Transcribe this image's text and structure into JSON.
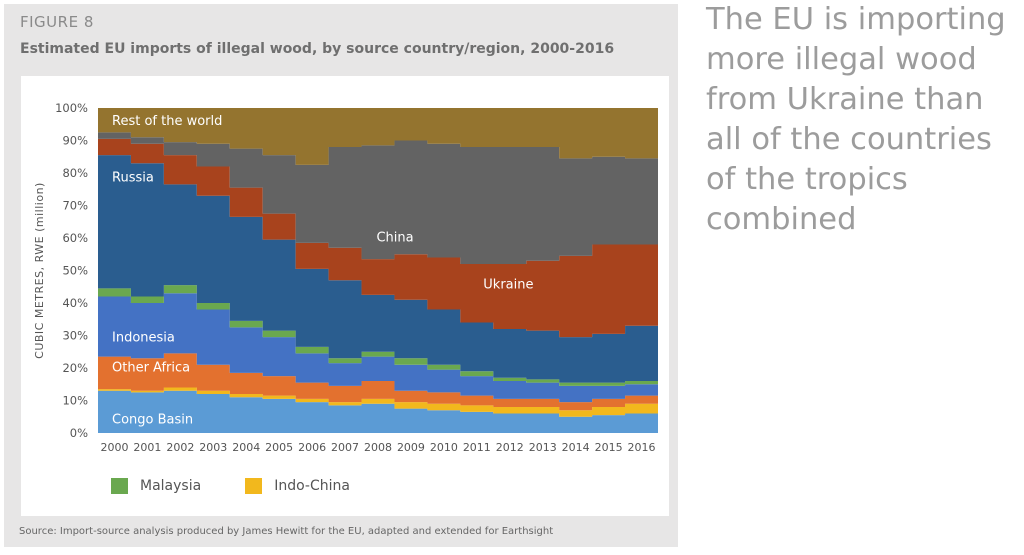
{
  "figure": {
    "label": "FIGURE 8",
    "title": "Estimated EU imports of illegal wood, by source country/region, 2000-2016",
    "source": "Source: Import-source analysis produced by James Hewitt for the EU, adapted and extended for Earthsight"
  },
  "headline": "The EU is importing\nmore illegal wood\nfrom Ukraine than\nall of the countries\nof the tropics\ncombined",
  "legend": [
    {
      "label": "Malaysia",
      "color": "#6aa84f"
    },
    {
      "label": "Indo-China",
      "color": "#f2b81d"
    }
  ],
  "chart_data": {
    "type": "area",
    "stacked": true,
    "xlabel": "",
    "ylabel": "CUBIC METRES, RWE (million)",
    "ylim": [
      0,
      100
    ],
    "y_ticks": [
      "0%",
      "10%",
      "20%",
      "30%",
      "40%",
      "50%",
      "60%",
      "70%",
      "80%",
      "90%",
      "100%"
    ],
    "categories": [
      "2000",
      "2001",
      "2002",
      "2003",
      "2004",
      "2005",
      "2006",
      "2007",
      "2008",
      "2009",
      "2010",
      "2011",
      "2012",
      "2013",
      "2014",
      "2015",
      "2016"
    ],
    "series": [
      {
        "name": "Congo Basin",
        "color": "#5b9bd5",
        "label": "Congo Basin",
        "values": [
          13,
          12.5,
          13,
          12,
          11,
          10.5,
          9.5,
          8.5,
          9,
          7.5,
          7,
          6.5,
          6,
          6,
          5,
          5.5,
          6
        ]
      },
      {
        "name": "Indo-China",
        "color": "#f2b81d",
        "label": "",
        "values": [
          0.5,
          0.5,
          1,
          1,
          1,
          1,
          1,
          1,
          1.5,
          2,
          2,
          2,
          2,
          2,
          2,
          2.5,
          3
        ]
      },
      {
        "name": "Other Africa",
        "color": "#e3712f",
        "label": "Other Africa",
        "values": [
          10,
          10,
          10.5,
          8,
          6.5,
          6,
          5,
          5,
          5.5,
          3.5,
          3.5,
          3,
          2.5,
          2.5,
          2.5,
          2.5,
          2.5
        ]
      },
      {
        "name": "Indonesia",
        "color": "#4472c4",
        "label": "Indonesia",
        "values": [
          18.5,
          17,
          18.5,
          17,
          14,
          12,
          9,
          7,
          7.5,
          8,
          7,
          6,
          5.5,
          5,
          5,
          4,
          3.5
        ]
      },
      {
        "name": "Malaysia",
        "color": "#6aa84f",
        "label": "",
        "values": [
          2.5,
          2,
          2.5,
          2,
          2,
          2,
          2,
          1.5,
          1.5,
          2,
          1.5,
          1.5,
          1,
          1,
          1,
          1,
          1
        ]
      },
      {
        "name": "Russia",
        "color": "#2a5d8f",
        "label": "Russia",
        "values": [
          41,
          41,
          31,
          33,
          32,
          28,
          24,
          24,
          17.5,
          18,
          17,
          15,
          15,
          15,
          14,
          15,
          17
        ]
      },
      {
        "name": "Ukraine",
        "color": "#a8431d",
        "label": "Ukraine",
        "values": [
          5,
          6,
          9,
          9,
          9,
          8,
          8,
          10,
          11,
          14,
          16,
          18,
          20,
          21.5,
          25,
          27.5,
          25
        ]
      },
      {
        "name": "China",
        "color": "#636363",
        "label": "China",
        "values": [
          2,
          2,
          4,
          7,
          12,
          18,
          24,
          31,
          35,
          35,
          35,
          36,
          36,
          35,
          30,
          27,
          26.5
        ]
      },
      {
        "name": "Rest of the world",
        "color": "#94742f",
        "label": "Rest of the world",
        "values": [
          7.5,
          9,
          10.5,
          11,
          12.5,
          14.5,
          17.5,
          12,
          11.5,
          10,
          11,
          12,
          12,
          12,
          15.5,
          15,
          15.5
        ]
      }
    ]
  }
}
